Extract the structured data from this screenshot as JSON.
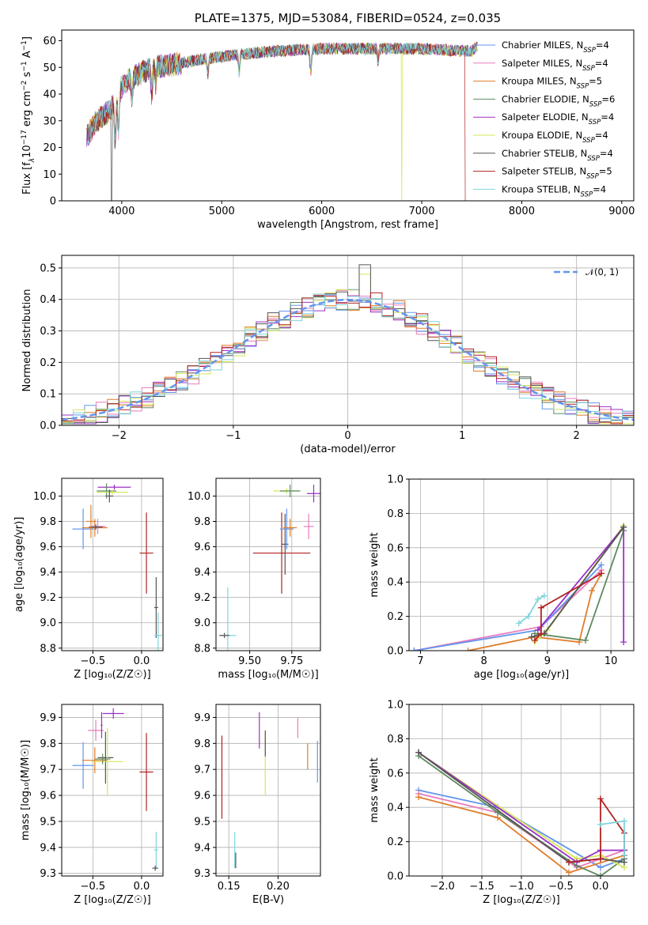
{
  "chart_data": [
    {
      "id": "spectrum",
      "type": "line",
      "title": "PLATE=1375, MJD=53084, FIBERID=0524, z=0.035",
      "xlabel": "wavelength [Angstrom, rest frame]",
      "ylabel_parts": [
        "Flux [f",
        "λ",
        "10",
        "−17",
        " erg cm",
        "−2",
        " s",
        "−1",
        " A",
        "−1",
        "]"
      ],
      "xlim": [
        3400,
        9120
      ],
      "ylim": [
        0,
        64
      ],
      "xticks": [
        4000,
        5000,
        6000,
        7000,
        8000,
        9000
      ],
      "yticks": [
        0,
        10,
        20,
        30,
        40,
        50,
        60
      ],
      "legend_position": "right",
      "grid": false,
      "continuum": {
        "x": [
          3650,
          3750,
          3850,
          3950,
          4000,
          4100,
          4300,
          4500,
          4800,
          5000,
          5200,
          5500,
          6000,
          6500,
          7000,
          7500,
          7550
        ],
        "y": [
          24,
          30,
          33,
          37,
          43,
          46,
          50,
          51,
          53,
          54,
          55,
          56,
          57,
          57,
          57,
          56,
          58
        ]
      },
      "series": [
        {
          "name_parts": [
            "Chabrier MILES, N",
            "SSP",
            "=4"
          ],
          "color": "#6495ed"
        },
        {
          "name_parts": [
            "Salpeter MILES, N",
            "SSP",
            "=4"
          ],
          "color": "#e87cbc"
        },
        {
          "name_parts": [
            "Kroupa MILES, N",
            "SSP",
            "=5"
          ],
          "color": "#e07d2a"
        },
        {
          "name_parts": [
            "Chabrier ELODIE, N",
            "SSP",
            "=6"
          ],
          "color": "#5f8a5f"
        },
        {
          "name_parts": [
            "Salpeter ELODIE, N",
            "SSP",
            "=4"
          ],
          "color": "#9b30c8"
        },
        {
          "name_parts": [
            "Kroupa ELODIE, N",
            "SSP",
            "=4"
          ],
          "color": "#d4e65a"
        },
        {
          "name_parts": [
            "Chabrier STELIB, N",
            "SSP",
            "=4"
          ],
          "color": "#555555"
        },
        {
          "name_parts": [
            "Salpeter STELIB, N",
            "SSP",
            "=5"
          ],
          "color": "#b22222"
        },
        {
          "name_parts": [
            "Kroupa STELIB, N",
            "SSP",
            "=4"
          ],
          "color": "#7fd4dc"
        }
      ]
    },
    {
      "id": "residuals",
      "type": "histogram",
      "xlabel": "(data-model)/error",
      "ylabel": "Normed distribution",
      "xlim": [
        -2.5,
        2.5
      ],
      "ylim": [
        0,
        0.54
      ],
      "xticks": [
        -2,
        -1,
        0,
        1,
        2
      ],
      "xtick_labels": [
        "−2",
        "−1",
        "0",
        "1",
        "2"
      ],
      "yticks": [
        0,
        0.1,
        0.2,
        0.3,
        0.4,
        0.5
      ],
      "ytick_labels": [
        "0.0",
        "0.1",
        "0.2",
        "0.3",
        "0.4",
        "0.5"
      ],
      "grid": true,
      "legend_position": "top-right",
      "reference": {
        "name": "𝒩(0, 1)",
        "color": "#6495ed",
        "style": "dashed",
        "mean": 0,
        "sigma": 1
      },
      "bin_width": 0.1,
      "bin_start": -2.5
    },
    {
      "id": "age_vs_Z",
      "type": "errorbar",
      "xlabel": "Z [log₁₀(Z/Z☉)]",
      "ylabel": "age  [log₁₀(age/yr)]",
      "xlim": [
        -0.82,
        0.22
      ],
      "ylim": [
        8.78,
        10.14
      ],
      "xticks": [
        -0.5,
        0.0
      ],
      "xtick_labels": [
        "−0.5",
        "0.0"
      ],
      "yticks": [
        8.8,
        9.0,
        9.2,
        9.4,
        9.6,
        9.8,
        10.0
      ],
      "ytick_labels": [
        "8.8",
        "9.0",
        "9.2",
        "9.4",
        "9.6",
        "9.8",
        "10.0"
      ],
      "grid": true,
      "points": [
        {
          "c": "#6495ed",
          "x": -0.6,
          "xe": 0.11,
          "y": 9.74,
          "ye": 0.16
        },
        {
          "c": "#e07d2a",
          "x": -0.48,
          "xe": 0.13,
          "y": 9.75,
          "ye": 0.07
        },
        {
          "c": "#e87cbc",
          "x": -0.45,
          "xe": 0.08,
          "y": 9.76,
          "ye": 0.06
        },
        {
          "c": "#555555",
          "x": -0.47,
          "xe": 0.07,
          "y": 9.755,
          "ye": 0.02
        },
        {
          "c": "#e07d2a",
          "x": -0.52,
          "xe": 0.05,
          "y": 9.8,
          "ye": 0.13
        },
        {
          "c": "#9b30c8",
          "x": -0.28,
          "xe": 0.17,
          "y": 10.07,
          "ye": 0.02
        },
        {
          "c": "#5f8a5f",
          "x": -0.36,
          "xe": 0.1,
          "y": 10.04,
          "ye": 0.06
        },
        {
          "c": "#d4e65a",
          "x": -0.3,
          "xe": 0.16,
          "y": 10.03,
          "ye": 0.02
        },
        {
          "c": "#555555",
          "x": -0.33,
          "xe": 0.04,
          "y": 10.0,
          "ye": 0.05
        },
        {
          "c": "#b22222",
          "x": 0.05,
          "xe": 0.07,
          "y": 9.55,
          "ye": 0.32
        },
        {
          "c": "#555555",
          "x": 0.15,
          "xe": 0.02,
          "y": 9.12,
          "ye": 0.24
        },
        {
          "c": "#7fd4dc",
          "x": 0.17,
          "xe": 0.04,
          "y": 8.9,
          "ye": 0.18
        }
      ]
    },
    {
      "id": "age_vs_mass",
      "type": "errorbar",
      "xlabel": "mass [log₁₀(M/M☉)]",
      "xlim": [
        9.3,
        9.92
      ],
      "ylim": [
        8.78,
        10.14
      ],
      "xticks": [
        9.5,
        9.75
      ],
      "xtick_labels": [
        "9.50",
        "9.75"
      ],
      "yticks": [
        8.8,
        9.0,
        9.2,
        9.4,
        9.6,
        9.8,
        10.0
      ],
      "ytick_labels": [
        "8.8",
        "9.0",
        "9.2",
        "9.4",
        "9.6",
        "9.8",
        "10.0"
      ],
      "grid": true,
      "points": [
        {
          "c": "#b22222",
          "x": 9.69,
          "xe": 0.17,
          "y": 9.55,
          "ye": 0.32
        },
        {
          "c": "#555555",
          "x": 9.71,
          "xe": 0.02,
          "y": 9.62,
          "ye": 0.24
        },
        {
          "c": "#6495ed",
          "x": 9.72,
          "xe": 0.04,
          "y": 9.74,
          "ye": 0.16
        },
        {
          "c": "#e07d2a",
          "x": 9.74,
          "xe": 0.04,
          "y": 9.75,
          "ye": 0.07
        },
        {
          "c": "#e87cbc",
          "x": 9.85,
          "xe": 0.03,
          "y": 9.76,
          "ye": 0.1
        },
        {
          "c": "#d4e65a",
          "x": 9.72,
          "xe": 0.08,
          "y": 10.04,
          "ye": 0.02
        },
        {
          "c": "#5f8a5f",
          "x": 9.74,
          "xe": 0.06,
          "y": 10.04,
          "ye": 0.05
        },
        {
          "c": "#9b30c8",
          "x": 9.88,
          "xe": 0.04,
          "y": 10.02,
          "ye": 0.07
        },
        {
          "c": "#7fd4dc",
          "x": 9.37,
          "xe": 0.05,
          "y": 8.9,
          "ye": 0.38
        },
        {
          "c": "#555555",
          "x": 9.35,
          "xe": 0.03,
          "y": 8.9,
          "ye": 0.02
        }
      ]
    },
    {
      "id": "weight_vs_age",
      "type": "line",
      "xlabel": "age  [log₁₀(age/yr)]",
      "ylabel": "mass weight",
      "xlim": [
        6.82,
        10.36
      ],
      "ylim": [
        0,
        1
      ],
      "xticks": [
        7,
        8,
        9,
        10
      ],
      "xtick_labels": [
        "7",
        "8",
        "9",
        "10"
      ],
      "yticks": [
        0,
        0.2,
        0.4,
        0.6,
        0.8,
        1.0
      ],
      "ytick_labels": [
        "0.0",
        "0.2",
        "0.4",
        "0.6",
        "0.8",
        "1.0"
      ],
      "grid": true,
      "series": [
        {
          "c": "#e87cbc",
          "x": [
            6.9,
            8.9,
            9.85
          ],
          "y": [
            0.0,
            0.14,
            0.47
          ]
        },
        {
          "c": "#6495ed",
          "x": [
            6.9,
            8.85,
            9.85
          ],
          "y": [
            0.0,
            0.12,
            0.5
          ]
        },
        {
          "c": "#e07d2a",
          "x": [
            7.75,
            8.8,
            9.5,
            9.7,
            9.85
          ],
          "y": [
            0.0,
            0.08,
            0.05,
            0.35,
            0.45
          ]
        },
        {
          "c": "#5f8a5f",
          "x": [
            8.8,
            9.6,
            10.2
          ],
          "y": [
            0.1,
            0.06,
            0.7
          ]
        },
        {
          "c": "#d4e65a",
          "x": [
            8.8,
            9.0,
            10.2
          ],
          "y": [
            0.05,
            0.12,
            0.73
          ]
        },
        {
          "c": "#9b30c8",
          "x": [
            8.85,
            10.2,
            10.2
          ],
          "y": [
            0.12,
            0.72,
            0.05
          ]
        },
        {
          "c": "#555555",
          "x": [
            8.75,
            8.95,
            10.2
          ],
          "y": [
            0.08,
            0.1,
            0.72
          ]
        },
        {
          "c": "#b22222",
          "x": [
            8.8,
            8.9,
            8.9,
            9.85
          ],
          "y": [
            0.06,
            0.1,
            0.25,
            0.45
          ]
        },
        {
          "c": "#7fd4dc",
          "x": [
            8.55,
            8.7,
            8.85,
            8.95
          ],
          "y": [
            0.16,
            0.2,
            0.3,
            0.32
          ]
        }
      ]
    },
    {
      "id": "mass_vs_Z",
      "type": "errorbar",
      "xlabel": "Z [log₁₀(Z/Z☉)]",
      "ylabel": "mass [log₁₀(M/M☉)]",
      "xlim": [
        -0.82,
        0.22
      ],
      "ylim": [
        9.29,
        9.95
      ],
      "xticks": [
        -0.5,
        0.0
      ],
      "xtick_labels": [
        "−0.5",
        "0.0"
      ],
      "yticks": [
        9.3,
        9.4,
        9.5,
        9.6,
        9.7,
        9.8,
        9.9
      ],
      "ytick_labels": [
        "9.3",
        "9.4",
        "9.5",
        "9.6",
        "9.7",
        "9.8",
        "9.9"
      ],
      "grid": true,
      "points": [
        {
          "c": "#6495ed",
          "x": -0.6,
          "xe": 0.11,
          "y": 9.715,
          "ye": 0.09
        },
        {
          "c": "#e07d2a",
          "x": -0.48,
          "xe": 0.13,
          "y": 9.735,
          "ye": 0.05
        },
        {
          "c": "#e87cbc",
          "x": -0.47,
          "xe": 0.08,
          "y": 9.85,
          "ye": 0.04
        },
        {
          "c": "#555555",
          "x": -0.37,
          "xe": 0.08,
          "y": 9.745,
          "ye": 0.1
        },
        {
          "c": "#d4e65a",
          "x": -0.35,
          "xe": 0.16,
          "y": 9.73,
          "ye": 0.13
        },
        {
          "c": "#5f8a5f",
          "x": -0.4,
          "xe": 0.08,
          "y": 9.74,
          "ye": 0.02
        },
        {
          "c": "#9b30c8",
          "x": -0.29,
          "xe": 0.11,
          "y": 9.915,
          "ye": 0.02
        },
        {
          "c": "#9b30c8",
          "x": -0.41,
          "xe": 0.01,
          "y": 9.87,
          "ye": 0.05
        },
        {
          "c": "#b22222",
          "x": 0.05,
          "xe": 0.07,
          "y": 9.69,
          "ye": 0.15
        },
        {
          "c": "#7fd4dc",
          "x": 0.15,
          "xe": 0.02,
          "y": 9.39,
          "ye": 0.07
        },
        {
          "c": "#555555",
          "x": 0.14,
          "xe": 0.03,
          "y": 9.32,
          "ye": 0.01
        }
      ]
    },
    {
      "id": "mass_vs_EBV",
      "type": "errorbar",
      "xlabel": "E(B-V)",
      "xlim": [
        0.137,
        0.243
      ],
      "ylim": [
        9.29,
        9.95
      ],
      "xticks": [
        0.15,
        0.2
      ],
      "xtick_labels": [
        "0.15",
        "0.20"
      ],
      "yticks": [
        9.3,
        9.4,
        9.5,
        9.6,
        9.7,
        9.8,
        9.9
      ],
      "ytick_labels": [
        "9.3",
        "9.4",
        "9.5",
        "9.6",
        "9.7",
        "9.8",
        "9.9"
      ],
      "grid": true,
      "points": [
        {
          "c": "#b22222",
          "x": 0.143,
          "xe": 0,
          "y": 9.67,
          "ye": 0.16
        },
        {
          "c": "#7fd4dc",
          "x": 0.156,
          "xe": 0,
          "y": 9.39,
          "ye": 0.07
        },
        {
          "c": "#555555",
          "x": 0.157,
          "xe": 0,
          "y": 9.35,
          "ye": 0.03
        },
        {
          "c": "#9b30c8",
          "x": 0.181,
          "xe": 0,
          "y": 9.85,
          "ye": 0.07
        },
        {
          "c": "#d4e65a",
          "x": 0.187,
          "xe": 0,
          "y": 9.72,
          "ye": 0.12
        },
        {
          "c": "#555555",
          "x": 0.187,
          "xe": 0,
          "y": 9.8,
          "ye": 0.05
        },
        {
          "c": "#e87cbc",
          "x": 0.22,
          "xe": 0,
          "y": 9.86,
          "ye": 0.04
        },
        {
          "c": "#e07d2a",
          "x": 0.23,
          "xe": 0,
          "y": 9.75,
          "ye": 0.05
        },
        {
          "c": "#6495ed",
          "x": 0.24,
          "xe": 0,
          "y": 9.73,
          "ye": 0.08
        }
      ]
    },
    {
      "id": "weight_vs_Z",
      "type": "line",
      "xlabel": "Z [log₁₀(Z/Z☉)]",
      "ylabel": "mass weight",
      "xlim": [
        -2.42,
        0.42
      ],
      "ylim": [
        0,
        1
      ],
      "xticks": [
        -2.0,
        -1.5,
        -1.0,
        -0.5,
        0.0
      ],
      "xtick_labels": [
        "−2.0",
        "−1.5",
        "−1.0",
        "−0.5",
        "0.0"
      ],
      "yticks": [
        0,
        0.2,
        0.4,
        0.6,
        0.8,
        1.0
      ],
      "ytick_labels": [
        "0.0",
        "0.2",
        "0.4",
        "0.6",
        "0.8",
        "1.0"
      ],
      "grid": true,
      "series": [
        {
          "c": "#6495ed",
          "x": [
            -2.3,
            -1.3,
            0.0,
            0.3
          ],
          "y": [
            0.5,
            0.4,
            0.05,
            0.1
          ]
        },
        {
          "c": "#e87cbc",
          "x": [
            -2.3,
            -1.3,
            -0.3,
            0.3
          ],
          "y": [
            0.48,
            0.37,
            0.05,
            0.15
          ]
        },
        {
          "c": "#e07d2a",
          "x": [
            -2.3,
            -1.3,
            -0.4,
            0.3
          ],
          "y": [
            0.46,
            0.34,
            0.02,
            0.12
          ]
        },
        {
          "c": "#5f8a5f",
          "x": [
            -2.3,
            -1.3,
            -0.3,
            0.0,
            0.3
          ],
          "y": [
            0.7,
            0.37,
            0.06,
            0.0,
            0.1
          ]
        },
        {
          "c": "#d4e65a",
          "x": [
            -2.3,
            -0.3,
            0.0,
            0.3
          ],
          "y": [
            0.72,
            0.1,
            0.12,
            0.05
          ]
        },
        {
          "c": "#9b30c8",
          "x": [
            -2.3,
            -0.3,
            0.0,
            0.3
          ],
          "y": [
            0.72,
            0.08,
            0.15,
            0.15
          ]
        },
        {
          "c": "#555555",
          "x": [
            -2.3,
            -0.4,
            0.0,
            0.3
          ],
          "y": [
            0.72,
            0.08,
            0.1,
            0.08
          ]
        },
        {
          "c": "#b22222",
          "x": [
            -0.4,
            0.0,
            0.0,
            0.3,
            0.3
          ],
          "y": [
            0.08,
            0.1,
            0.45,
            0.25,
            0.12
          ]
        },
        {
          "c": "#7fd4dc",
          "x": [
            0.0,
            0.0,
            0.3,
            0.3
          ],
          "y": [
            0.3,
            0.3,
            0.32,
            0.12
          ]
        }
      ]
    }
  ]
}
